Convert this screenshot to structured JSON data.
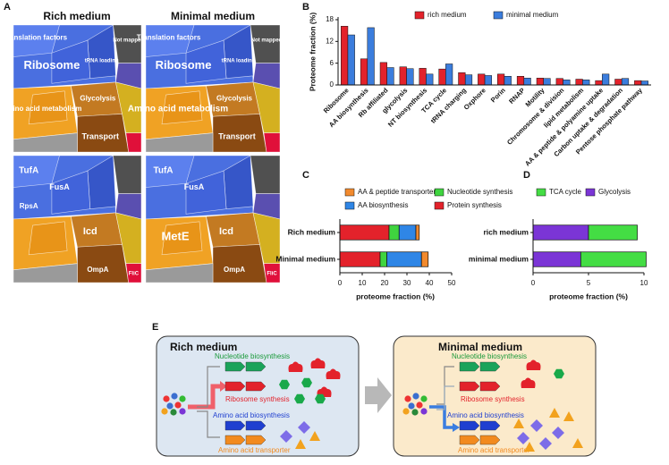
{
  "panels": [
    "A",
    "B",
    "C",
    "D",
    "E"
  ],
  "panel_a": {
    "titles": [
      "Rich medium",
      "Minimal medium"
    ],
    "maps": [
      {
        "labels": [
          "Translation factors",
          "Ribosome",
          "tRNA loading",
          "Not mapped",
          "Amino acid metabolism",
          "Glycolysis",
          "Transport"
        ]
      },
      {
        "labels": [
          "Translation factors",
          "Ribosome",
          "tRNA loading",
          "Not mapped",
          "Amino acid metabolism",
          "Glycolysis",
          "Transport"
        ]
      },
      {
        "labels": [
          "TufA",
          "FusA",
          "RpsA",
          "Icd",
          "OmpA",
          "FliC"
        ]
      },
      {
        "labels": [
          "TufA",
          "FusA",
          "MetE",
          "Icd",
          "OmpA",
          "FliC"
        ]
      }
    ]
  },
  "panel_e": {
    "rich": {
      "title": "Rich medium",
      "labels": [
        "Nucleotide  biosynthesis",
        "Ribosome synthesis",
        "Amino acid biosynthesis",
        "Amino acid transporter"
      ]
    },
    "minimal": {
      "title": "Minimal  medium",
      "labels": [
        "Nucleotide  biosynthesis",
        "Ribosome synthesis",
        "Amino acid biosynthesis",
        "Amino acid transporter"
      ]
    }
  },
  "chart_data": [
    {
      "type": "bar",
      "y_label": "Proteome fraction (%)",
      "categories": [
        "Ribosome",
        "AA biosynthesis",
        "Rb affiliated",
        "glycolysis",
        "NT biosynthesis",
        "TCA cycle",
        "tRNA charging",
        "Oxphore",
        "Porin",
        "RNAP",
        "Motility",
        "Chromosome & division",
        "lipid metabolism",
        "AA & peptide & polyamine uptake",
        "Carbon uptake & degradation",
        "Pentose phosphate pathway"
      ],
      "series": [
        {
          "name": "rich medium",
          "color": "#e3222b",
          "values": [
            16.2,
            7.2,
            6.2,
            5.0,
            4.6,
            4.4,
            3.4,
            3.0,
            3.0,
            2.4,
            1.9,
            1.8,
            1.6,
            1.2,
            1.6,
            1.2
          ]
        },
        {
          "name": "minimal medium",
          "color": "#3b7ddd",
          "values": [
            13.8,
            15.8,
            4.8,
            4.5,
            3.0,
            5.8,
            2.8,
            2.6,
            2.4,
            1.9,
            1.8,
            1.4,
            1.4,
            3.0,
            1.8,
            1.1
          ]
        }
      ],
      "ylim": [
        0,
        18
      ],
      "yticks": [
        0,
        6,
        12,
        18
      ],
      "grid": false
    },
    {
      "type": "barh",
      "stacked": true,
      "x_label": "proteome fraction (%)",
      "categories": [
        "Rich medium",
        "Minimal medium"
      ],
      "series": [
        {
          "name": "Protein synthesis",
          "color": "#e3222b",
          "values": [
            22,
            18
          ]
        },
        {
          "name": "Nucleotide synthesis",
          "color": "#3fd43f",
          "values": [
            4.5,
            3
          ]
        },
        {
          "name": "AA biosynthesis",
          "color": "#2f86e6",
          "values": [
            7.5,
            15.5
          ]
        },
        {
          "name": "AA & peptide transporter",
          "color": "#f28a2e",
          "values": [
            1.5,
            3
          ]
        }
      ],
      "xlim": [
        0,
        50
      ],
      "xticks": [
        0,
        10,
        20,
        30,
        40,
        50
      ],
      "grid": false
    },
    {
      "type": "barh",
      "stacked": true,
      "x_label": "proteome fraction (%)",
      "categories": [
        "rich medium",
        "minimal medium"
      ],
      "series": [
        {
          "name": "Glycolysis",
          "color": "#7b35d6",
          "values": [
            5.0,
            4.3
          ]
        },
        {
          "name": "TCA cycle",
          "color": "#44dd44",
          "values": [
            4.4,
            5.9
          ]
        }
      ],
      "xlim": [
        0,
        10
      ],
      "xticks": [
        0,
        5,
        10
      ],
      "grid": false
    }
  ]
}
